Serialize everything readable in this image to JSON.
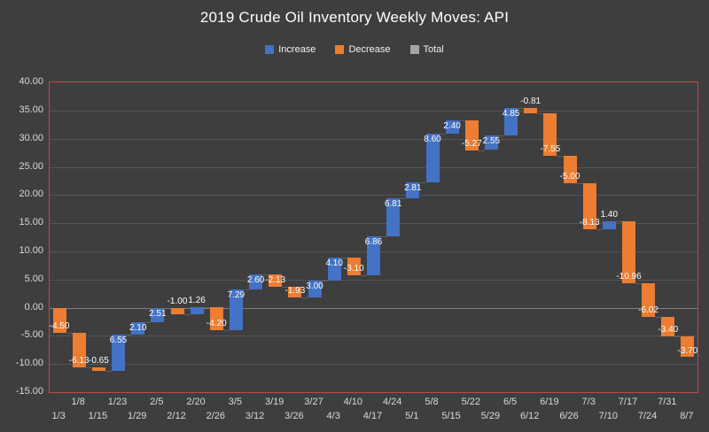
{
  "title": "2019 Crude Oil Inventory Weekly Moves: API",
  "legend": {
    "items": [
      {
        "label": "Increase",
        "color": "#4472C4"
      },
      {
        "label": "Decrease",
        "color": "#ED7D31"
      },
      {
        "label": "Total",
        "color": "#A5A5A5"
      }
    ]
  },
  "chart_data": {
    "type": "bar",
    "subtype": "waterfall",
    "title": "2019 Crude Oil Inventory Weekly Moves: API",
    "categories": [
      "1/3",
      "1/8",
      "1/15",
      "1/23",
      "1/29",
      "2/5",
      "2/12",
      "2/20",
      "2/26",
      "3/5",
      "3/12",
      "3/19",
      "3/26",
      "3/27",
      "4/3",
      "4/10",
      "4/17",
      "4/24",
      "5/1",
      "5/8",
      "5/15",
      "5/22",
      "5/29",
      "6/5",
      "6/12",
      "6/19",
      "6/26",
      "7/3",
      "7/10",
      "7/17",
      "7/24",
      "7/31",
      "8/7"
    ],
    "values": [
      -4.5,
      -6.13,
      -0.65,
      6.55,
      2.1,
      2.51,
      -1.0,
      1.26,
      -4.2,
      7.29,
      2.6,
      -2.13,
      -1.93,
      3.0,
      4.1,
      -3.1,
      6.86,
      6.81,
      2.81,
      8.6,
      2.4,
      -5.27,
      2.55,
      4.85,
      -0.81,
      -7.55,
      -5.0,
      -8.13,
      1.4,
      -10.96,
      -6.02,
      -3.4,
      -3.7
    ],
    "xlabel": "",
    "ylabel": "",
    "ylim": [
      -15,
      40
    ],
    "ytick_step": 5,
    "y_tick_labels": [
      "40.00",
      "35.00",
      "30.00",
      "25.00",
      "20.00",
      "15.00",
      "10.00",
      "5.00",
      "0.00",
      "-5.00",
      "-10.00",
      "-15.00"
    ],
    "grid": true,
    "legend_position": "top",
    "colors": {
      "increase": "#4472C4",
      "decrease": "#ED7D31",
      "total": "#A5A5A5"
    },
    "style": {
      "background": "#3E3E3E",
      "plot_border": "#C64742",
      "gridline": "#555555",
      "zero_line": "#7F7F7F",
      "axis_label": "#D9D9D9",
      "title_color": "#FFFFFF",
      "bar_label_color": "#FFFFFF",
      "connector": "#6B6B6B"
    }
  }
}
